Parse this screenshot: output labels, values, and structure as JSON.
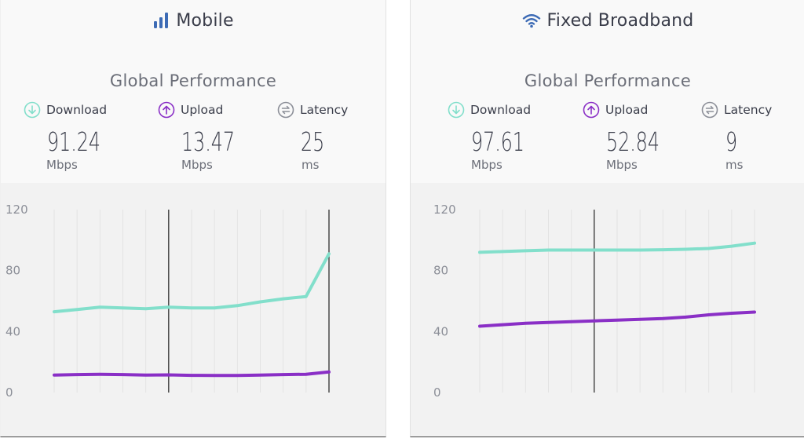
{
  "mobile": {
    "title": "Mobile",
    "icon": "signal-bars-icon",
    "section_title": "Global Performance",
    "metrics": [
      {
        "label": "Download",
        "value": "91.24",
        "unit": "Mbps",
        "icon": "download-arrow-icon",
        "color": "#7fdcc8"
      },
      {
        "label": "Upload",
        "value": "13.47",
        "unit": "Mbps",
        "icon": "upload-arrow-icon",
        "color": "#8a2fc6"
      },
      {
        "label": "Latency",
        "value": "25",
        "unit": "ms",
        "icon": "latency-icon",
        "color": "#8c8f98"
      }
    ]
  },
  "fixed": {
    "title": "Fixed Broadband",
    "icon": "wifi-icon",
    "section_title": "Global Performance",
    "metrics": [
      {
        "label": "Download",
        "value": "97.61",
        "unit": "Mbps",
        "icon": "download-arrow-icon",
        "color": "#7fdcc8"
      },
      {
        "label": "Upload",
        "value": "52.84",
        "unit": "Mbps",
        "icon": "upload-arrow-icon",
        "color": "#8a2fc6"
      },
      {
        "label": "Latency",
        "value": "9",
        "unit": "ms",
        "icon": "latency-icon",
        "color": "#8c8f98"
      }
    ]
  },
  "colors": {
    "download": "#82dfcb",
    "upload": "#8a2fc6",
    "accent_blue": "#3d6bb5",
    "grid": "#e3e3e3",
    "marker_line": "#222222"
  },
  "chart_data": [
    {
      "type": "line",
      "title": "",
      "ylim": [
        0,
        120
      ],
      "yticks": [
        "0",
        "40",
        "80",
        "120"
      ],
      "grid": true,
      "x_count": 13,
      "vertical_markers_at_index": [
        5,
        12
      ],
      "series": [
        {
          "name": "Download",
          "values": [
            53,
            54.5,
            56,
            55.5,
            55,
            56,
            55.5,
            55.5,
            57,
            59.5,
            61.5,
            63,
            91
          ]
        },
        {
          "name": "Upload",
          "values": [
            11.5,
            11.8,
            12,
            11.8,
            11.5,
            11.6,
            11.3,
            11.2,
            11.2,
            11.5,
            11.8,
            12,
            13.5
          ]
        }
      ]
    },
    {
      "type": "line",
      "title": "",
      "ylim": [
        0,
        120
      ],
      "yticks": [
        "0",
        "40",
        "80",
        "120"
      ],
      "grid": true,
      "x_count": 13,
      "vertical_markers_at_index": [
        5
      ],
      "series": [
        {
          "name": "Download",
          "values": [
            92,
            92.5,
            93,
            93.5,
            93.5,
            93.5,
            93.5,
            93.5,
            93.7,
            94,
            94.5,
            96,
            98
          ]
        },
        {
          "name": "Upload",
          "values": [
            43.5,
            44.5,
            45.5,
            46,
            46.5,
            47,
            47.5,
            48,
            48.5,
            49.5,
            51,
            52,
            52.8
          ]
        }
      ]
    }
  ]
}
